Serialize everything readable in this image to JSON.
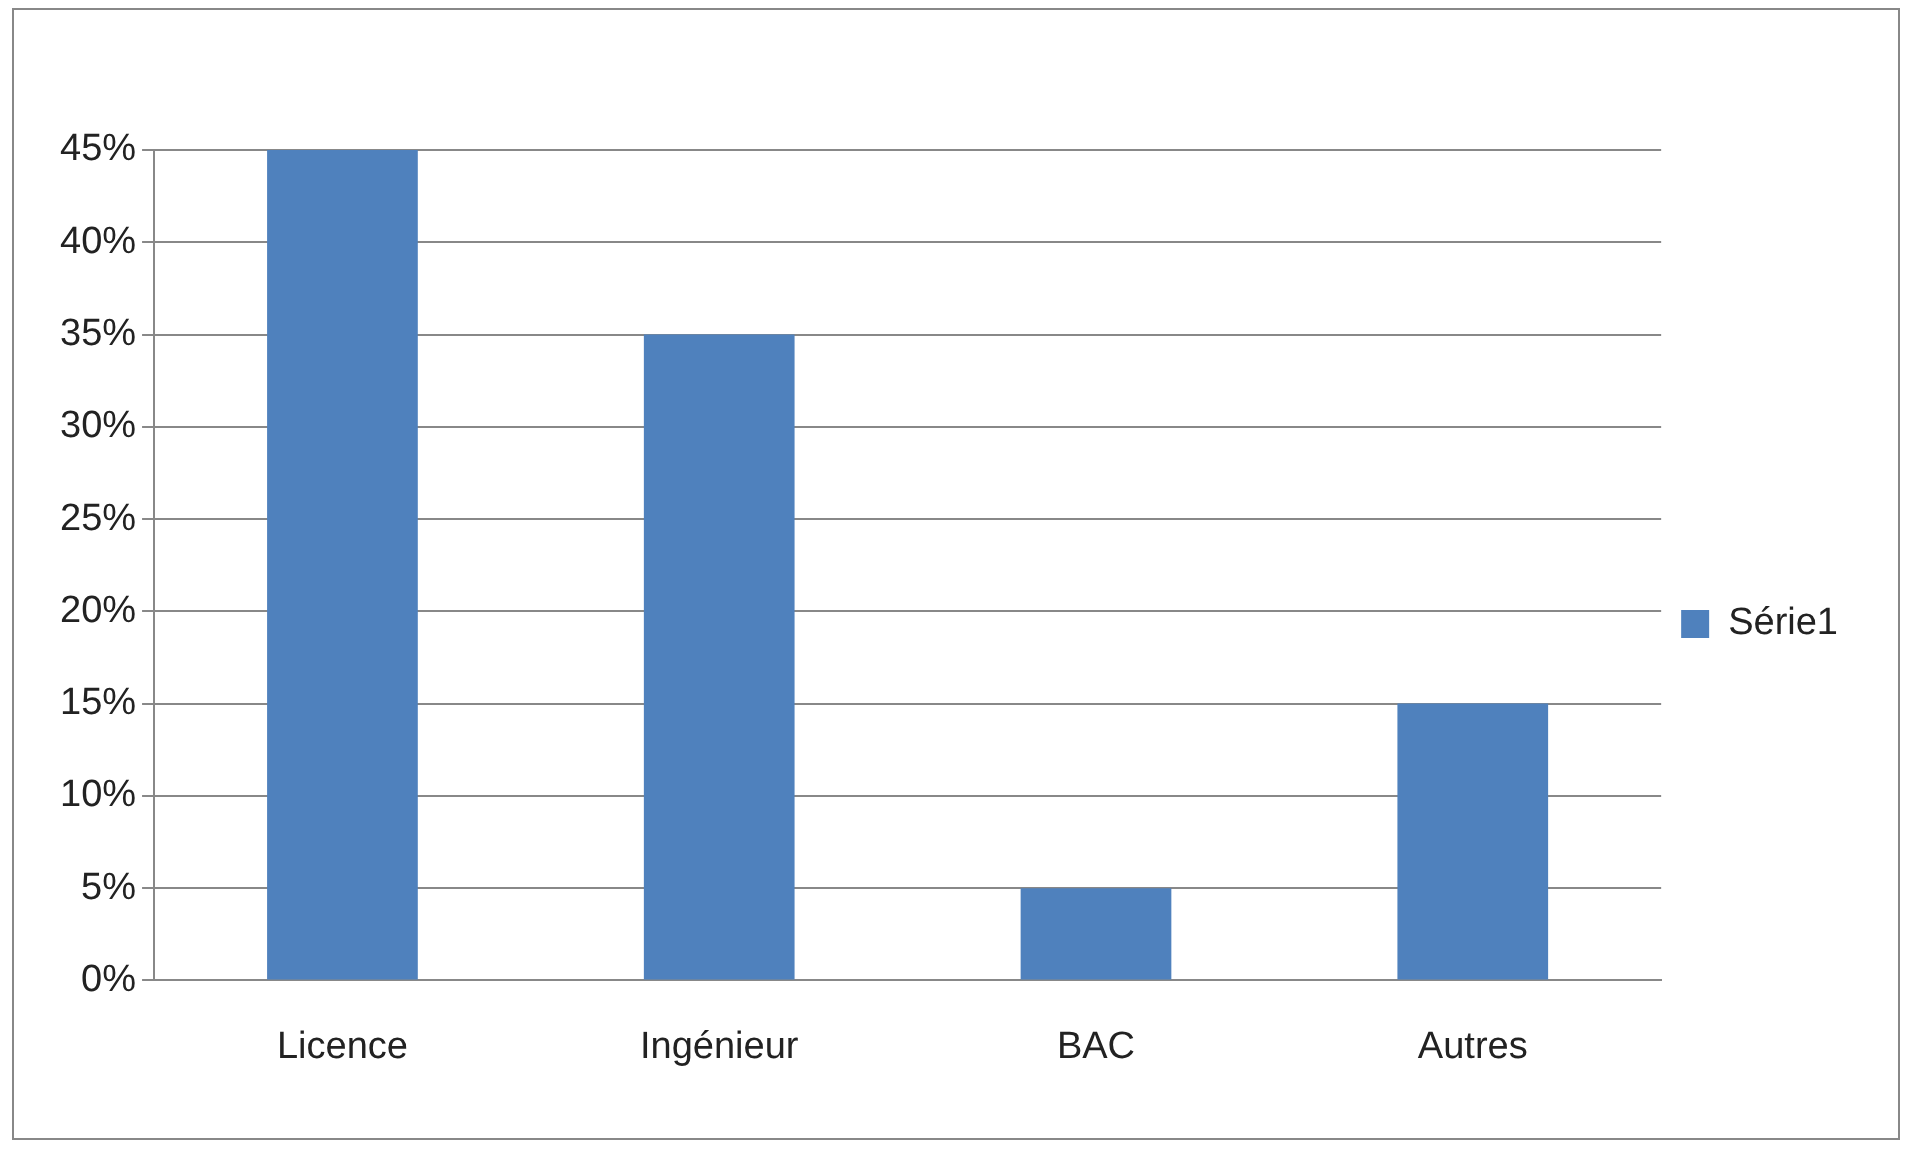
{
  "chart_data": {
    "type": "bar",
    "categories": [
      "Licence",
      "Ingénieur",
      "BAC",
      "Autres"
    ],
    "series": [
      {
        "name": "Série1",
        "color": "#4f81bd",
        "values": [
          45,
          35,
          5,
          15
        ]
      }
    ],
    "ylim": [
      0,
      45
    ],
    "yticks": [
      {
        "value": 0,
        "label": "0%"
      },
      {
        "value": 5,
        "label": "5%"
      },
      {
        "value": 10,
        "label": "10%"
      },
      {
        "value": 15,
        "label": "15%"
      },
      {
        "value": 20,
        "label": "20%"
      },
      {
        "value": 25,
        "label": "25%"
      },
      {
        "value": 30,
        "label": "30%"
      },
      {
        "value": 35,
        "label": "35%"
      },
      {
        "value": 40,
        "label": "40%"
      },
      {
        "value": 45,
        "label": "45%"
      }
    ],
    "grid": "y",
    "legend": "right"
  }
}
